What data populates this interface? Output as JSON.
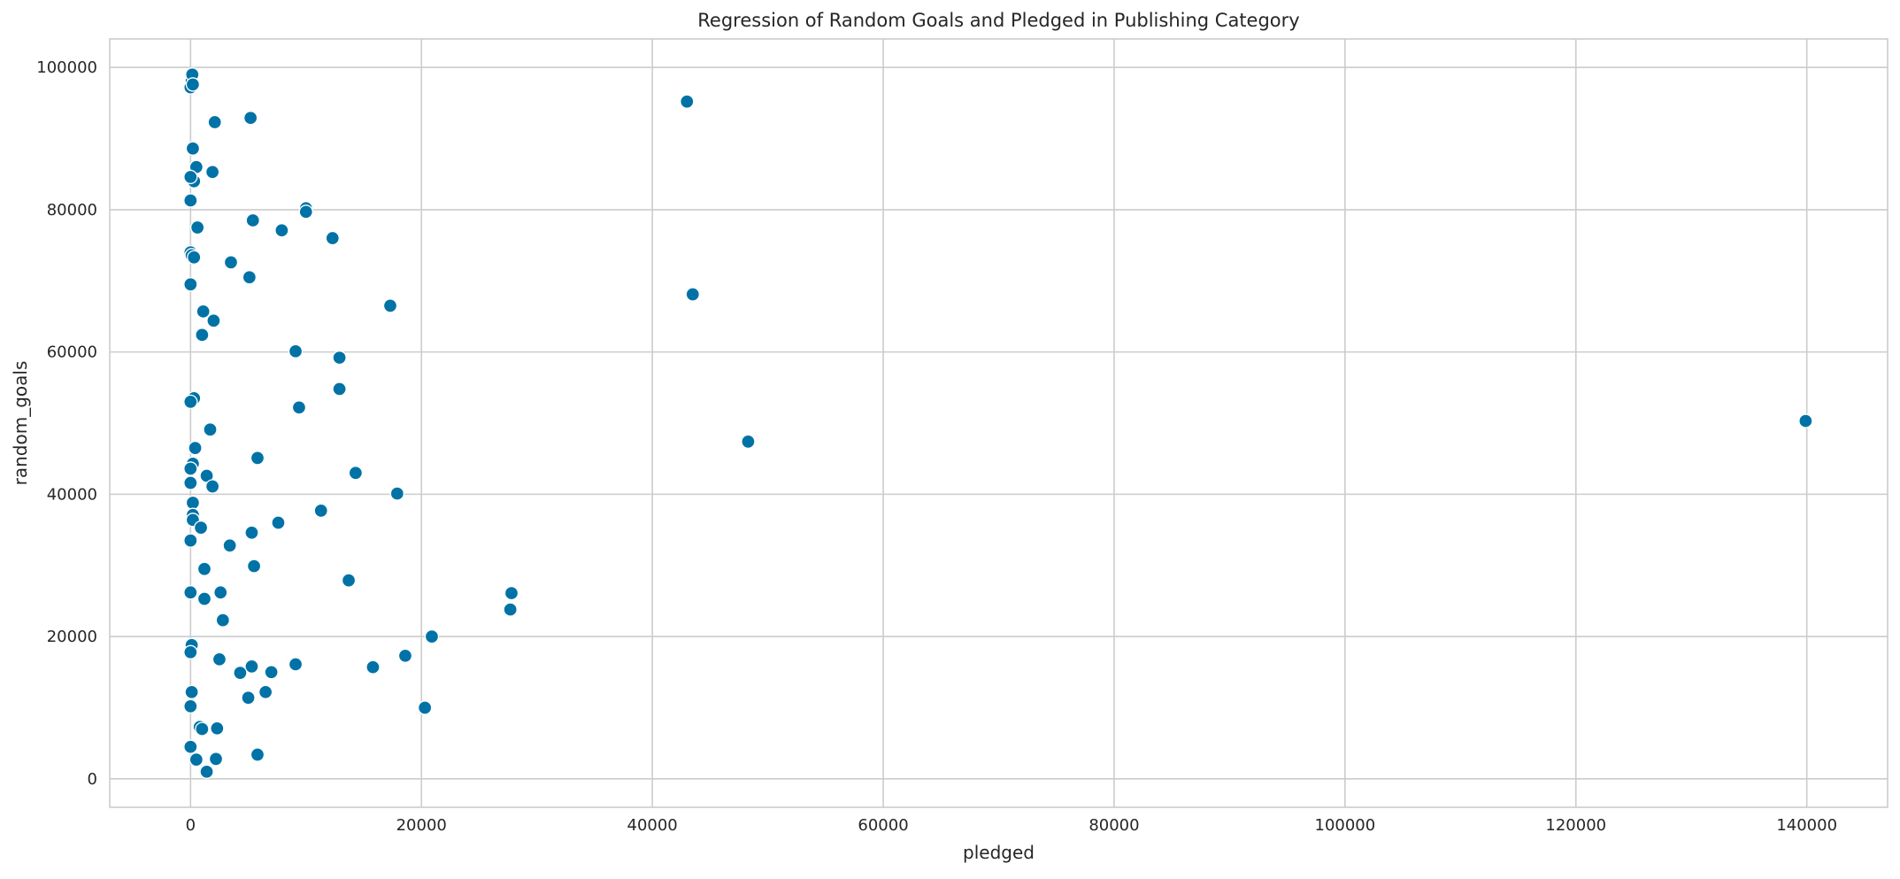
{
  "chart_data": {
    "type": "scatter",
    "title": "Regression of Random Goals and Pledged in Publishing Category",
    "xlabel": "pledged",
    "ylabel": "random_goals",
    "xlim": [
      -7000,
      147000
    ],
    "ylim": [
      -4000,
      104000
    ],
    "xticks": [
      0,
      20000,
      40000,
      60000,
      80000,
      100000,
      120000,
      140000
    ],
    "yticks": [
      0,
      20000,
      40000,
      60000,
      80000,
      100000
    ],
    "grid": true,
    "marker_color": "#0072a6",
    "points": [
      {
        "x": 0,
        "y": 97200
      },
      {
        "x": 100,
        "y": 98100
      },
      {
        "x": 150,
        "y": 99000
      },
      {
        "x": 200,
        "y": 97600
      },
      {
        "x": 2100,
        "y": 92300
      },
      {
        "x": 5200,
        "y": 92900
      },
      {
        "x": 200,
        "y": 88600
      },
      {
        "x": 500,
        "y": 86000
      },
      {
        "x": 300,
        "y": 84000
      },
      {
        "x": 0,
        "y": 84600
      },
      {
        "x": 1900,
        "y": 85300
      },
      {
        "x": 0,
        "y": 81300
      },
      {
        "x": 10000,
        "y": 80200
      },
      {
        "x": 10000,
        "y": 79700
      },
      {
        "x": 5400,
        "y": 78500
      },
      {
        "x": 600,
        "y": 77500
      },
      {
        "x": 7900,
        "y": 77100
      },
      {
        "x": 12300,
        "y": 76000
      },
      {
        "x": 0,
        "y": 74000
      },
      {
        "x": 100,
        "y": 73600
      },
      {
        "x": 300,
        "y": 73300
      },
      {
        "x": 3500,
        "y": 72600
      },
      {
        "x": 5100,
        "y": 70500
      },
      {
        "x": 0,
        "y": 69500
      },
      {
        "x": 17300,
        "y": 66500
      },
      {
        "x": 1100,
        "y": 65700
      },
      {
        "x": 2000,
        "y": 64400
      },
      {
        "x": 1000,
        "y": 62400
      },
      {
        "x": 9100,
        "y": 60100
      },
      {
        "x": 12900,
        "y": 59200
      },
      {
        "x": 12900,
        "y": 54800
      },
      {
        "x": 300,
        "y": 53500
      },
      {
        "x": 0,
        "y": 53000
      },
      {
        "x": 9400,
        "y": 52200
      },
      {
        "x": 1700,
        "y": 49100
      },
      {
        "x": 400,
        "y": 46500
      },
      {
        "x": 5800,
        "y": 45100
      },
      {
        "x": 200,
        "y": 44300
      },
      {
        "x": 0,
        "y": 43600
      },
      {
        "x": 1400,
        "y": 42600
      },
      {
        "x": 14300,
        "y": 43000
      },
      {
        "x": 0,
        "y": 41600
      },
      {
        "x": 1900,
        "y": 41100
      },
      {
        "x": 17900,
        "y": 40100
      },
      {
        "x": 200,
        "y": 38800
      },
      {
        "x": 11300,
        "y": 37700
      },
      {
        "x": 200,
        "y": 37100
      },
      {
        "x": 200,
        "y": 36400
      },
      {
        "x": 7600,
        "y": 36000
      },
      {
        "x": 900,
        "y": 35300
      },
      {
        "x": 5300,
        "y": 34600
      },
      {
        "x": 0,
        "y": 33500
      },
      {
        "x": 3400,
        "y": 32800
      },
      {
        "x": 5500,
        "y": 29900
      },
      {
        "x": 1200,
        "y": 29500
      },
      {
        "x": 13700,
        "y": 27900
      },
      {
        "x": 0,
        "y": 26200
      },
      {
        "x": 2600,
        "y": 26200
      },
      {
        "x": 27800,
        "y": 26100
      },
      {
        "x": 1200,
        "y": 25300
      },
      {
        "x": 27700,
        "y": 23800
      },
      {
        "x": 2800,
        "y": 22300
      },
      {
        "x": 20900,
        "y": 20000
      },
      {
        "x": 100,
        "y": 18800
      },
      {
        "x": 0,
        "y": 17800
      },
      {
        "x": 18600,
        "y": 17300
      },
      {
        "x": 2500,
        "y": 16800
      },
      {
        "x": 9100,
        "y": 16100
      },
      {
        "x": 5300,
        "y": 15800
      },
      {
        "x": 15800,
        "y": 15700
      },
      {
        "x": 7000,
        "y": 15000
      },
      {
        "x": 4300,
        "y": 14900
      },
      {
        "x": 100,
        "y": 12200
      },
      {
        "x": 6500,
        "y": 12200
      },
      {
        "x": 5000,
        "y": 11400
      },
      {
        "x": 0,
        "y": 10200
      },
      {
        "x": 20300,
        "y": 10000
      },
      {
        "x": 800,
        "y": 7300
      },
      {
        "x": 1000,
        "y": 7000
      },
      {
        "x": 2300,
        "y": 7100
      },
      {
        "x": 0,
        "y": 4500
      },
      {
        "x": 5800,
        "y": 3400
      },
      {
        "x": 500,
        "y": 2700
      },
      {
        "x": 2200,
        "y": 2800
      },
      {
        "x": 1400,
        "y": 1000
      },
      {
        "x": 43000,
        "y": 95200
      },
      {
        "x": 43500,
        "y": 68100
      },
      {
        "x": 48300,
        "y": 47400
      },
      {
        "x": 139900,
        "y": 50300
      }
    ]
  }
}
